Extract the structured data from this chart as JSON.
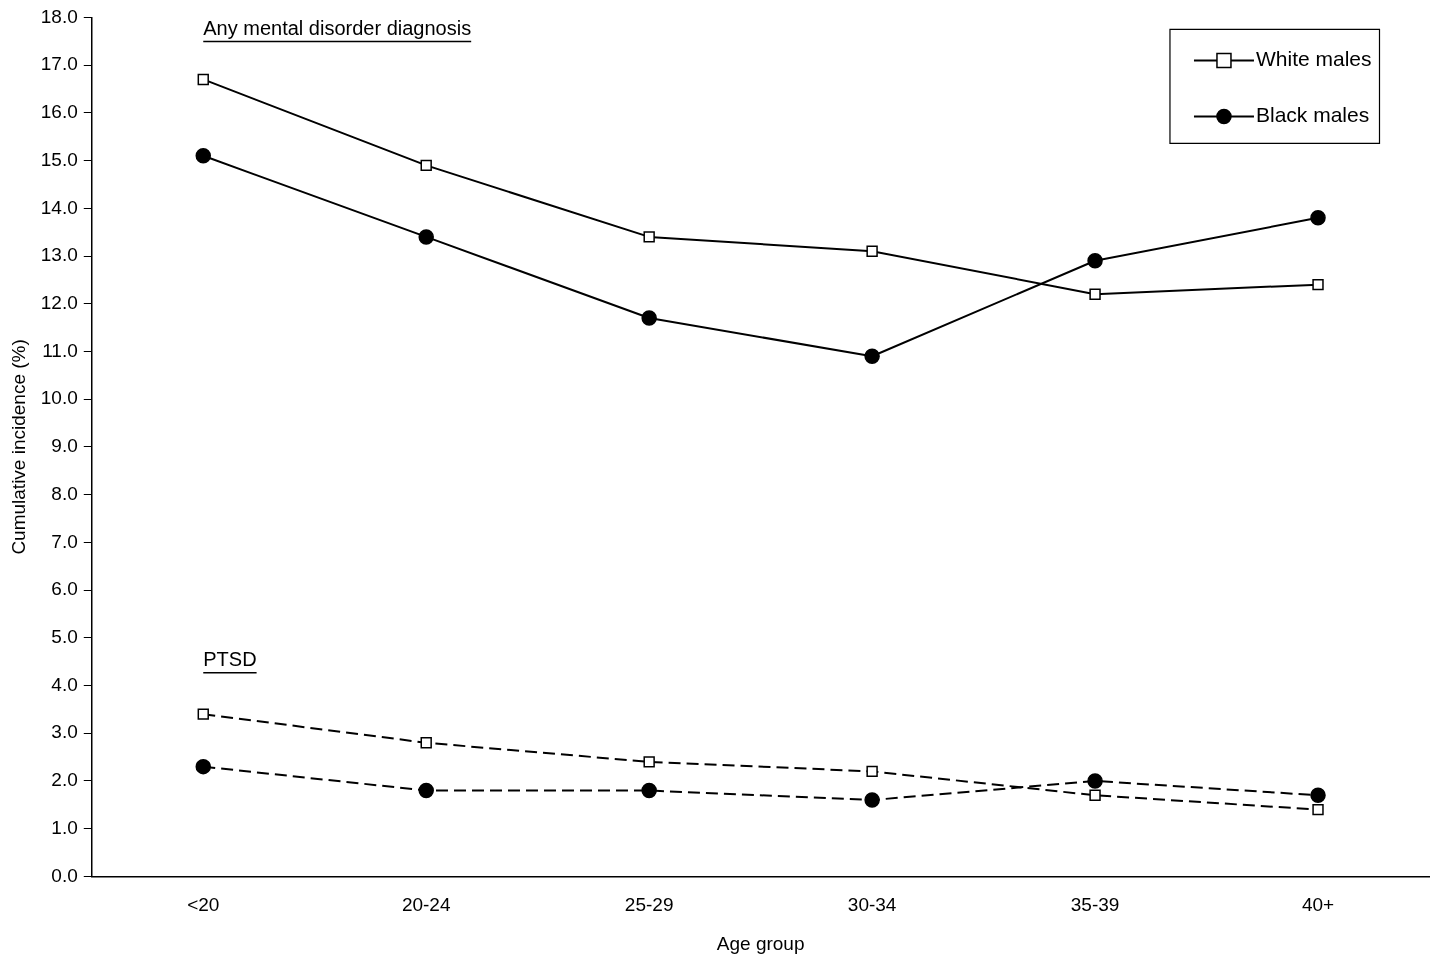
{
  "chart_data": {
    "type": "line",
    "xlabel": "Age group",
    "ylabel": "Cumulative incidence (%)",
    "categories": [
      "<20",
      "20-24",
      "25-29",
      "30-34",
      "35-39",
      "40+"
    ],
    "series": [
      {
        "name": "White males",
        "color": "#000000",
        "marker": "square",
        "line_style": "solid",
        "values": [
          16.7,
          14.9,
          13.4,
          13.1,
          12.2,
          12.4
        ]
      },
      {
        "name": "Black males",
        "color": "#000000",
        "marker": "circle",
        "line_style": "solid",
        "values": [
          15.1,
          13.4,
          11.7,
          10.9,
          12.9,
          13.8
        ]
      },
      {
        "color": "#000000",
        "marker": "square",
        "line_style": "dashed",
        "values": [
          3.4,
          2.8,
          2.4,
          2.2,
          1.7,
          1.4
        ]
      },
      {
        "color": "#000000",
        "marker": "circle",
        "line_style": "dashed",
        "values": [
          2.3,
          1.8,
          1.8,
          1.6,
          2.0,
          1.7
        ]
      }
    ],
    "ylim": [
      0,
      18
    ],
    "yticks": [
      {
        "value": 0,
        "label": "0.0"
      },
      {
        "value": 1,
        "label": "1.0"
      },
      {
        "value": 2,
        "label": "2.0"
      },
      {
        "value": 3,
        "label": "3.0"
      },
      {
        "value": 4,
        "label": "4.0"
      },
      {
        "value": 5,
        "label": "5.0"
      },
      {
        "value": 6,
        "label": "6.0"
      },
      {
        "value": 7,
        "label": "7.0"
      },
      {
        "value": 8,
        "label": "8.0"
      },
      {
        "value": 9,
        "label": "9.0"
      },
      {
        "value": 10,
        "label": "10.0"
      },
      {
        "value": 11,
        "label": "11.0"
      },
      {
        "value": 12,
        "label": "12.0"
      },
      {
        "value": 13,
        "label": "13.0"
      },
      {
        "value": 14,
        "label": "14.0"
      },
      {
        "value": 15,
        "label": "15.0"
      },
      {
        "value": 16,
        "label": "16.0"
      },
      {
        "value": 17,
        "label": "17.0"
      },
      {
        "value": 18,
        "label": "18.0"
      }
    ],
    "grid": false,
    "legend": "top right",
    "annotations": [
      "Any mental disorder diagnosis",
      "PTSD"
    ]
  }
}
